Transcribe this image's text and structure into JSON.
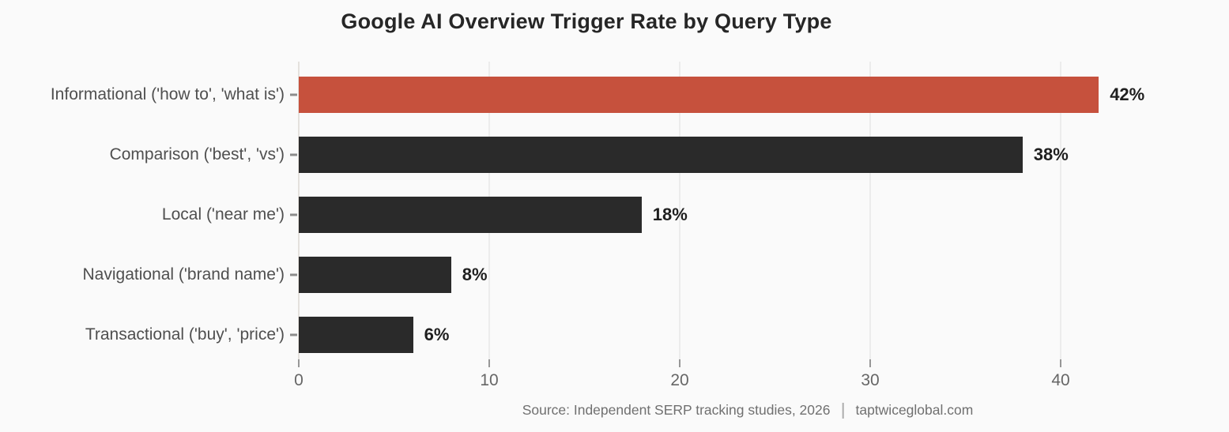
{
  "title": "Google AI Overview Trigger Rate by Query Type",
  "source": {
    "study": "Source: Independent SERP tracking studies, 2026",
    "site": "taptwiceglobal.com"
  },
  "colors": {
    "background": "#FAFAFA",
    "highlight_bar": "#C6513D",
    "default_bar": "#2A2A2A",
    "gridline": "#ECECEC",
    "zero_line": "#E4E1DD"
  },
  "chart_data": {
    "type": "bar",
    "orientation": "horizontal",
    "title": "Google AI Overview Trigger Rate by Query Type",
    "categories": [
      "Informational ('how to', 'what is')",
      "Comparison ('best', 'vs')",
      "Local ('near me')",
      "Navigational ('brand name')",
      "Transactional ('buy', 'price')"
    ],
    "values": [
      42,
      38,
      18,
      8,
      6
    ],
    "value_labels": [
      "42%",
      "38%",
      "18%",
      "8%",
      "6%"
    ],
    "bar_colors": [
      "#C6513D",
      "#2A2A2A",
      "#2A2A2A",
      "#2A2A2A",
      "#2A2A2A"
    ],
    "highlighted_category": "Informational ('how to', 'what is')",
    "xlabel": "",
    "ylabel": "",
    "xlim": [
      0,
      45
    ],
    "x_ticks": [
      0,
      10,
      20,
      30,
      40
    ],
    "grid": "vertical-only",
    "legend": "none"
  }
}
